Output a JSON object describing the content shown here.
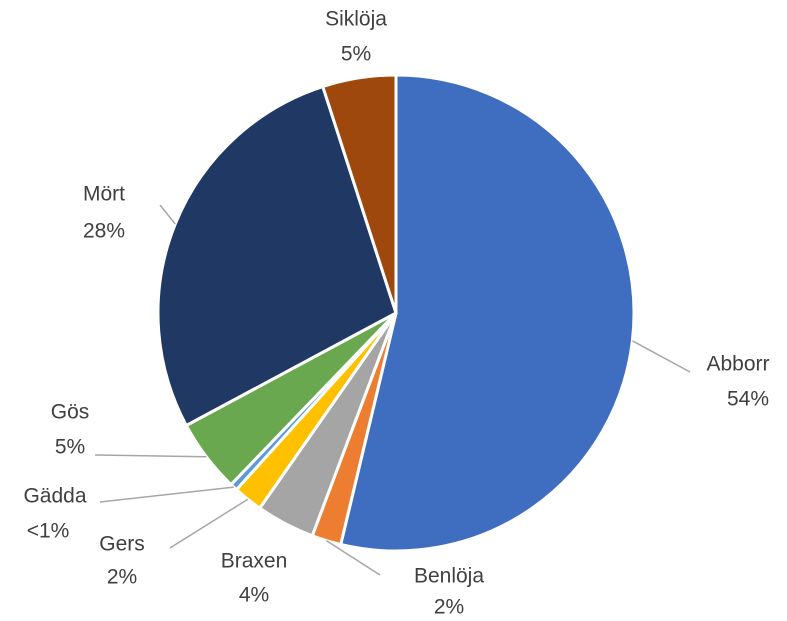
{
  "chart_data": {
    "type": "pie",
    "categories": [
      "Abborr",
      "Benlöja",
      "Braxen",
      "Gers",
      "Gädda",
      "Gös",
      "Mört",
      "Siklöja"
    ],
    "values": [
      54,
      2,
      4,
      2,
      0.5,
      5,
      28,
      5
    ],
    "value_labels": [
      "54%",
      "2%",
      "4%",
      "2%",
      "<1%",
      "5%",
      "28%",
      "5%"
    ],
    "colors": [
      "#3f6dbf",
      "#ed7d31",
      "#a5a5a5",
      "#ffc000",
      "#5b9bd5",
      "#6aa84f",
      "#203864",
      "#9e480e"
    ]
  }
}
